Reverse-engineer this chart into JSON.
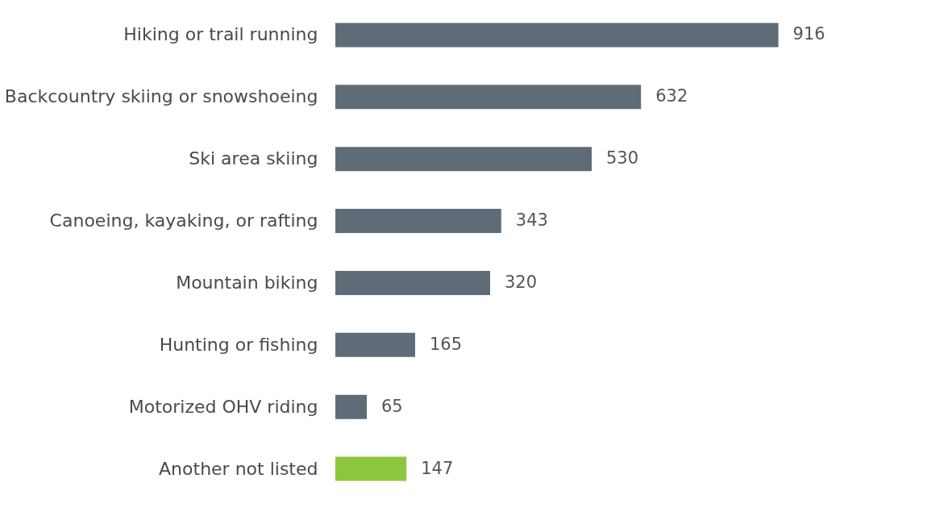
{
  "chart_data": {
    "type": "bar",
    "orientation": "horizontal",
    "categories": [
      "Hiking or trail running",
      "Backcountry skiing or snowshoeing",
      "Ski area skiing",
      "Canoeing, kayaking, or rafting",
      "Mountain biking",
      "Hunting or fishing",
      "Motorized OHV riding",
      "Another not listed"
    ],
    "values": [
      916,
      632,
      530,
      343,
      320,
      165,
      65,
      147
    ],
    "colors": [
      "#5f6b77",
      "#5f6b77",
      "#5f6b77",
      "#5f6b77",
      "#5f6b77",
      "#5f6b77",
      "#5f6b77",
      "#8dc63f"
    ],
    "data_labels": true,
    "grid": false
  }
}
